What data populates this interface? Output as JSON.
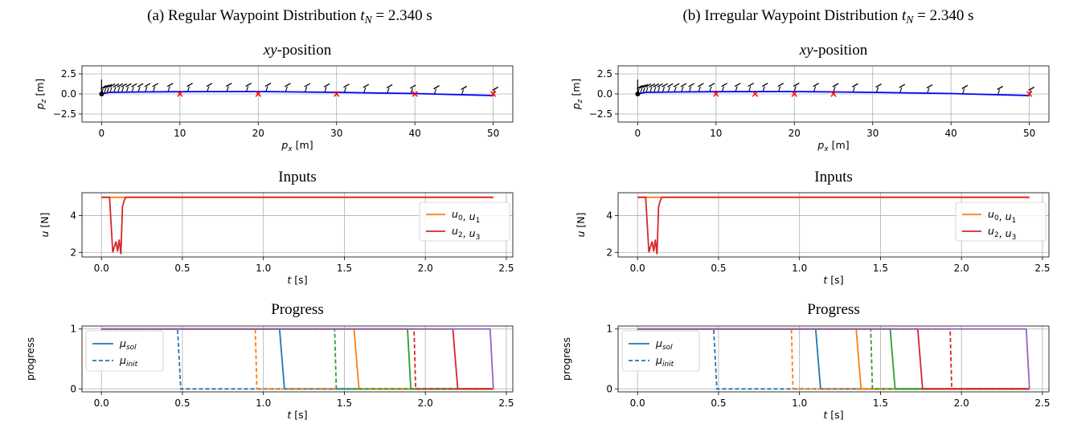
{
  "figure": {
    "panels": [
      {
        "label": "(a) Regular Waypoint Distribution",
        "t_label": "t",
        "t_sub": "N",
        "t_value": "= 2.340 s"
      },
      {
        "label": "(b) Irregular Waypoint Distribution",
        "t_label": "t",
        "t_sub": "N",
        "t_value": "= 2.340 s"
      }
    ]
  },
  "chart_data": [
    {
      "type": "line",
      "panel": "a",
      "title": "xy-position",
      "title_italic": "xy",
      "title_rest": "-position",
      "xlabel": "p_x [m]",
      "ylabel": "p_z [m]",
      "xlim": [
        -2.5,
        52.5
      ],
      "ylim": [
        -3.5,
        3.5
      ],
      "xticks": [
        0,
        10,
        20,
        30,
        40,
        50
      ],
      "yticks": [
        -2.5,
        0.0,
        2.5
      ],
      "xtick_labels": [
        "0",
        "10",
        "20",
        "30",
        "40",
        "50"
      ],
      "ytick_labels": [
        "−2.5",
        "0.0",
        "2.5"
      ],
      "grid": true,
      "series": [
        {
          "values": [
            [
              0,
              0
            ],
            [
              1,
              0.2
            ],
            [
              5,
              0.25
            ],
            [
              10,
              0.28
            ],
            [
              20,
              0.3
            ],
            [
              30,
              0.2
            ],
            [
              40,
              0.05
            ],
            [
              50,
              -0.2
            ]
          ],
          "color": "#0000ff"
        }
      ],
      "waypoints": [
        [
          10,
          0
        ],
        [
          20,
          0
        ],
        [
          30,
          0
        ],
        [
          40,
          0
        ],
        [
          50,
          0
        ]
      ],
      "waypoint_color": "#ff0000",
      "attitude_x": [
        0,
        0.35,
        0.7,
        1.1,
        1.6,
        2.1,
        2.6,
        3.2,
        3.9,
        4.7,
        5.6,
        6.6,
        8.5,
        11,
        13.5,
        16,
        18.5,
        21,
        23.5,
        26,
        28.5,
        31,
        33.5,
        36.5,
        39.5,
        42.5,
        46,
        50
      ]
    },
    {
      "type": "line",
      "panel": "a",
      "title": "Inputs",
      "xlabel": "t [s]",
      "ylabel": "u [N]",
      "xlim": [
        -0.12,
        2.54
      ],
      "ylim": [
        1.75,
        5.25
      ],
      "xticks": [
        0,
        0.5,
        1.0,
        1.5,
        2.0,
        2.5
      ],
      "yticks": [
        2,
        4
      ],
      "xtick_labels": [
        "0.0",
        "0.5",
        "1.0",
        "1.5",
        "2.0",
        "2.5"
      ],
      "ytick_labels": [
        "2",
        "4"
      ],
      "grid": true,
      "legend_position": "right",
      "series": [
        {
          "name": "u_0, u_1",
          "color": "#ff7f0e",
          "x": [
            0,
            2.42
          ],
          "values": [
            5,
            5
          ]
        },
        {
          "name": "u_2, u_3",
          "color": "#d62728",
          "x": [
            0,
            0.05,
            0.07,
            0.09,
            0.1,
            0.11,
            0.12,
            0.13,
            0.14,
            0.15,
            2.42
          ],
          "values": [
            5,
            5,
            2.0,
            2.6,
            2.05,
            2.7,
            1.9,
            4.5,
            4.8,
            5,
            5
          ]
        }
      ]
    },
    {
      "type": "line",
      "panel": "a",
      "title": "Progress",
      "xlabel": "t [s]",
      "ylabel": "progress",
      "xlim": [
        -0.12,
        2.54
      ],
      "ylim": [
        -0.05,
        1.05
      ],
      "xticks": [
        0,
        0.5,
        1.0,
        1.5,
        2.0,
        2.5
      ],
      "yticks": [
        0,
        1
      ],
      "xtick_labels": [
        "0.0",
        "0.5",
        "1.0",
        "1.5",
        "2.0",
        "2.5"
      ],
      "ytick_labels": [
        "0",
        "1"
      ],
      "grid": true,
      "legend_position": "upper left",
      "legend": [
        {
          "name": "μ_sol",
          "style": "solid"
        },
        {
          "name": "μ_init",
          "style": "dashed"
        }
      ],
      "series": [
        {
          "color": "#1f77b4",
          "switch_sol": [
            1.1,
            1.13
          ],
          "switch_init": [
            0.47,
            0.49
          ]
        },
        {
          "color": "#ff7f0e",
          "switch_sol": [
            1.56,
            1.59
          ],
          "switch_init": [
            0.95,
            0.96
          ]
        },
        {
          "color": "#2ca02c",
          "switch_sol": [
            1.89,
            1.91
          ],
          "switch_init": [
            1.44,
            1.45
          ]
        },
        {
          "color": "#d62728",
          "switch_sol": [
            2.17,
            2.2
          ],
          "switch_init": [
            1.93,
            1.94
          ]
        },
        {
          "color": "#9467bd",
          "switch_sol": [
            2.4,
            2.42
          ],
          "switch_init": null
        }
      ]
    },
    {
      "type": "line",
      "panel": "b",
      "title": "xy-position",
      "title_italic": "xy",
      "title_rest": "-position",
      "xlabel": "p_x [m]",
      "ylabel": "p_z [m]",
      "xlim": [
        -2.5,
        52.5
      ],
      "ylim": [
        -3.5,
        3.5
      ],
      "xticks": [
        0,
        10,
        20,
        30,
        40,
        50
      ],
      "yticks": [
        -2.5,
        0.0,
        2.5
      ],
      "xtick_labels": [
        "0",
        "10",
        "20",
        "30",
        "40",
        "50"
      ],
      "ytick_labels": [
        "−2.5",
        "0.0",
        "2.5"
      ],
      "grid": true,
      "series": [
        {
          "values": [
            [
              0,
              0
            ],
            [
              1,
              0.2
            ],
            [
              5,
              0.25
            ],
            [
              10,
              0.28
            ],
            [
              20,
              0.3
            ],
            [
              30,
              0.2
            ],
            [
              40,
              0.05
            ],
            [
              50,
              -0.2
            ]
          ],
          "color": "#0000ff"
        }
      ],
      "waypoints": [
        [
          10,
          0
        ],
        [
          15,
          0
        ],
        [
          20,
          0
        ],
        [
          25,
          0
        ],
        [
          50,
          0
        ]
      ],
      "waypoint_color": "#ff0000",
      "attitude_x": [
        0,
        0.35,
        0.7,
        1.1,
        1.6,
        2.1,
        2.6,
        3.2,
        3.9,
        4.7,
        5.6,
        6.6,
        7.8,
        9.2,
        10.8,
        12.5,
        14.2,
        16,
        18,
        20,
        22.5,
        25,
        27.5,
        30.5,
        33.5,
        37,
        41.5,
        46,
        50
      ]
    },
    {
      "type": "line",
      "panel": "b",
      "title": "Inputs",
      "xlabel": "t [s]",
      "ylabel": "u [N]",
      "xlim": [
        -0.12,
        2.54
      ],
      "ylim": [
        1.75,
        5.25
      ],
      "xticks": [
        0,
        0.5,
        1.0,
        1.5,
        2.0,
        2.5
      ],
      "yticks": [
        2,
        4
      ],
      "xtick_labels": [
        "0.0",
        "0.5",
        "1.0",
        "1.5",
        "2.0",
        "2.5"
      ],
      "ytick_labels": [
        "2",
        "4"
      ],
      "grid": true,
      "legend_position": "right",
      "series": [
        {
          "name": "u_0, u_1",
          "color": "#ff7f0e",
          "x": [
            0,
            2.42
          ],
          "values": [
            5,
            5
          ]
        },
        {
          "name": "u_2, u_3",
          "color": "#d62728",
          "x": [
            0,
            0.05,
            0.07,
            0.09,
            0.1,
            0.11,
            0.12,
            0.13,
            0.14,
            0.15,
            2.42
          ],
          "values": [
            5,
            5,
            2.0,
            2.6,
            2.05,
            2.7,
            1.9,
            4.5,
            4.8,
            5,
            5
          ]
        }
      ]
    },
    {
      "type": "line",
      "panel": "b",
      "title": "Progress",
      "xlabel": "t [s]",
      "ylabel": "progress",
      "xlim": [
        -0.12,
        2.54
      ],
      "ylim": [
        -0.05,
        1.05
      ],
      "xticks": [
        0,
        0.5,
        1.0,
        1.5,
        2.0,
        2.5
      ],
      "yticks": [
        0,
        1
      ],
      "xtick_labels": [
        "0.0",
        "0.5",
        "1.0",
        "1.5",
        "2.0",
        "2.5"
      ],
      "ytick_labels": [
        "0",
        "1"
      ],
      "grid": true,
      "legend_position": "upper left",
      "legend": [
        {
          "name": "μ_sol",
          "style": "solid"
        },
        {
          "name": "μ_init",
          "style": "dashed"
        }
      ],
      "series": [
        {
          "color": "#1f77b4",
          "switch_sol": [
            1.1,
            1.13
          ],
          "switch_init": [
            0.47,
            0.49
          ]
        },
        {
          "color": "#ff7f0e",
          "switch_sol": [
            1.35,
            1.38
          ],
          "switch_init": [
            0.95,
            0.96
          ]
        },
        {
          "color": "#2ca02c",
          "switch_sol": [
            1.56,
            1.59
          ],
          "switch_init": [
            1.44,
            1.45
          ]
        },
        {
          "color": "#d62728",
          "switch_sol": [
            1.73,
            1.76
          ],
          "switch_init": [
            1.93,
            1.94
          ]
        },
        {
          "color": "#9467bd",
          "switch_sol": [
            2.4,
            2.42
          ],
          "switch_init": null
        }
      ]
    }
  ]
}
